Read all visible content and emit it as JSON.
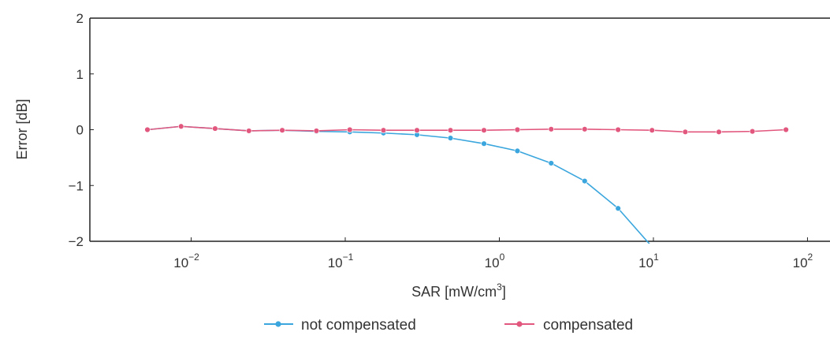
{
  "chart_data": {
    "type": "line",
    "xlabel": "SAR [mW/cm",
    "xlabel_superscript": "3",
    "xlabel_suffix": "]",
    "ylabel": "Error [dB]",
    "x_scale": "log",
    "xlim": [
      0.0022,
      140
    ],
    "ylim": [
      -2,
      2
    ],
    "x_tick_labels": [
      {
        "base": "10",
        "exponent": "−2",
        "value": 0.01
      },
      {
        "base": "10",
        "exponent": "−1",
        "value": 0.1
      },
      {
        "base": "10",
        "exponent": "0",
        "value": 1
      },
      {
        "base": "10",
        "exponent": "1",
        "value": 10
      },
      {
        "base": "10",
        "exponent": "2",
        "value": 100
      }
    ],
    "y_tick_labels": [
      {
        "label": "2",
        "value": 2
      },
      {
        "label": "1",
        "value": 1
      },
      {
        "label": "0",
        "value": 0
      },
      {
        "label": "−1",
        "value": -1
      },
      {
        "label": "−2",
        "value": -2
      }
    ],
    "grid": false,
    "legend_position": "bottom",
    "series": [
      {
        "name": "not compensated",
        "color": "#3aa6dd",
        "x": [
          0.0052,
          0.0086,
          0.0143,
          0.0237,
          0.039,
          0.065,
          0.107,
          0.177,
          0.292,
          0.482,
          0.795,
          1.31,
          2.17,
          3.58,
          5.9,
          9.8
        ],
        "y": [
          0.0,
          0.06,
          0.02,
          -0.02,
          -0.01,
          -0.03,
          -0.04,
          -0.06,
          -0.09,
          -0.15,
          -0.25,
          -0.38,
          -0.6,
          -0.92,
          -1.41,
          -2.1
        ]
      },
      {
        "name": "compensated",
        "color": "#e2577e",
        "x": [
          0.0052,
          0.0086,
          0.0143,
          0.0237,
          0.039,
          0.065,
          0.107,
          0.177,
          0.292,
          0.482,
          0.795,
          1.31,
          2.17,
          3.58,
          5.9,
          9.8,
          16.1,
          26.6,
          43.9,
          72.5
        ],
        "y": [
          0.0,
          0.06,
          0.02,
          -0.02,
          -0.01,
          -0.02,
          0.0,
          -0.01,
          -0.01,
          -0.01,
          -0.01,
          0.0,
          0.01,
          0.01,
          0.0,
          -0.01,
          -0.04,
          -0.04,
          -0.03,
          0.0
        ]
      }
    ]
  }
}
